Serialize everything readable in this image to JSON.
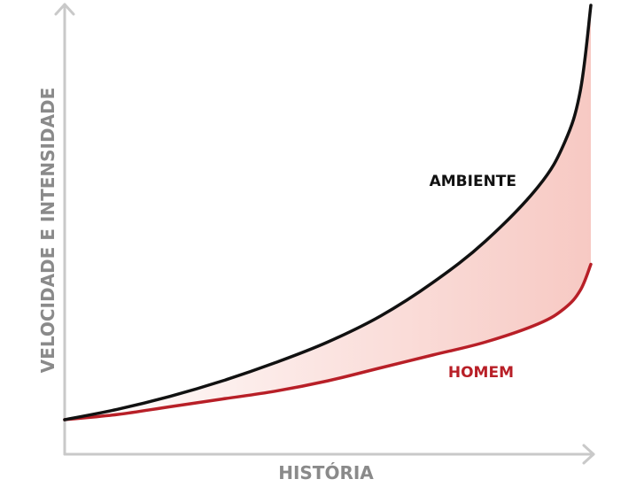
{
  "chart_data": {
    "type": "line",
    "title": "",
    "xlabel": "HISTÓRIA",
    "ylabel": "VELOCIDADE E INTENSIDADE",
    "grid": false,
    "legend": "inline labels at line ends",
    "fill_between": {
      "series": [
        "AMBIENTE",
        "HOMEM"
      ],
      "color_start": "#ffffff",
      "color_end": "#f7c9c3"
    },
    "series": [
      {
        "name": "AMBIENTE",
        "color": "#111111",
        "x": [
          0,
          10,
          20,
          30,
          40,
          50,
          60,
          70,
          80,
          90,
          95,
          98,
          100
        ],
        "y": [
          0,
          4,
          9,
          15,
          22,
          30,
          40,
          53,
          69,
          90,
          107,
          127,
          160
        ]
      },
      {
        "name": "HOMEM",
        "color": "#b81f27",
        "x": [
          0,
          10,
          20,
          30,
          40,
          50,
          60,
          70,
          80,
          90,
          95,
          98,
          100
        ],
        "y": [
          0,
          2,
          5,
          8,
          11,
          15,
          20,
          25,
          30,
          37,
          43,
          50,
          60
        ]
      }
    ]
  },
  "axis_color": "#c9c9c9",
  "axis_label_color": "#8a8a8a"
}
